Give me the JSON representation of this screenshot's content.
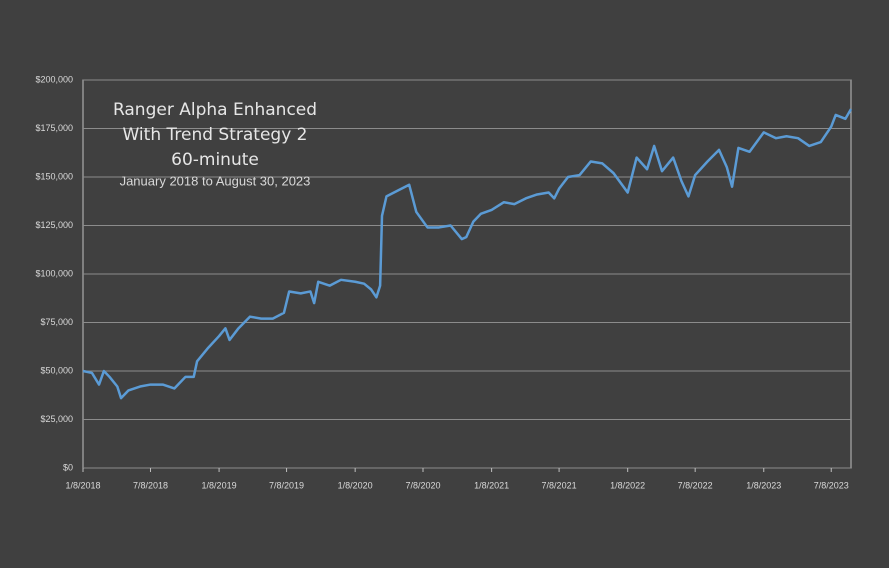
{
  "chart_data": {
    "type": "line",
    "title": [
      "Ranger Alpha Enhanced",
      "With Trend Strategy 2",
      "60-minute"
    ],
    "subtitle": "January 2018 to August 30, 2023",
    "x": [
      "2018-01-08",
      "2018-02-01",
      "2018-02-20",
      "2018-03-05",
      "2018-03-20",
      "2018-04-10",
      "2018-04-20",
      "2018-05-10",
      "2018-06-10",
      "2018-07-08",
      "2018-08-10",
      "2018-09-10",
      "2018-10-10",
      "2018-11-01",
      "2018-11-10",
      "2018-12-10",
      "2019-01-08",
      "2019-01-25",
      "2019-02-05",
      "2019-03-01",
      "2019-04-01",
      "2019-05-01",
      "2019-06-01",
      "2019-07-01",
      "2019-07-15",
      "2019-08-15",
      "2019-09-10",
      "2019-09-20",
      "2019-10-01",
      "2019-11-01",
      "2019-12-01",
      "2020-01-08",
      "2020-02-01",
      "2020-02-20",
      "2020-03-05",
      "2020-03-15",
      "2020-03-20",
      "2020-04-01",
      "2020-05-01",
      "2020-06-01",
      "2020-06-20",
      "2020-07-20",
      "2020-08-20",
      "2020-09-20",
      "2020-10-20",
      "2020-11-01",
      "2020-11-20",
      "2020-12-10",
      "2021-01-08",
      "2021-02-10",
      "2021-03-10",
      "2021-04-10",
      "2021-05-10",
      "2021-06-10",
      "2021-06-25",
      "2021-07-08",
      "2021-08-01",
      "2021-09-01",
      "2021-10-01",
      "2021-11-01",
      "2021-12-01",
      "2022-01-08",
      "2022-02-01",
      "2022-03-01",
      "2022-03-20",
      "2022-04-10",
      "2022-05-10",
      "2022-06-01",
      "2022-06-20",
      "2022-07-08",
      "2022-08-10",
      "2022-09-10",
      "2022-10-01",
      "2022-10-15",
      "2022-11-01",
      "2022-12-01",
      "2023-01-08",
      "2023-02-10",
      "2023-03-10",
      "2023-04-10",
      "2023-05-10",
      "2023-06-10",
      "2023-07-08",
      "2023-07-20",
      "2023-08-15",
      "2023-08-30"
    ],
    "series": [
      {
        "color": "#5b9bd5",
        "values": [
          50000,
          49000,
          43000,
          50000,
          47000,
          42000,
          36000,
          40000,
          42000,
          43000,
          43000,
          41000,
          47000,
          47000,
          55000,
          62000,
          68000,
          72000,
          66000,
          72000,
          78000,
          77000,
          77000,
          80000,
          91000,
          90000,
          91000,
          85000,
          96000,
          94000,
          97000,
          96000,
          95000,
          92000,
          88000,
          94000,
          130000,
          140000,
          143000,
          146000,
          132000,
          124000,
          124000,
          125000,
          118000,
          119000,
          127000,
          131000,
          133000,
          137000,
          136000,
          139000,
          141000,
          142000,
          139000,
          144000,
          150000,
          151000,
          158000,
          157000,
          152000,
          142000,
          160000,
          154000,
          166000,
          153000,
          160000,
          148000,
          140000,
          151000,
          158000,
          164000,
          155000,
          145000,
          165000,
          163000,
          173000,
          170000,
          171000,
          170000,
          166000,
          168000,
          176000,
          182000,
          180000,
          185000
        ]
      }
    ],
    "xlim": [
      "2018-01-08",
      "2023-08-30"
    ],
    "xticks": [
      {
        "value": "2018-01-08",
        "label": "1/8/2018"
      },
      {
        "value": "2018-07-08",
        "label": "7/8/2018"
      },
      {
        "value": "2019-01-08",
        "label": "1/8/2019"
      },
      {
        "value": "2019-07-08",
        "label": "7/8/2019"
      },
      {
        "value": "2020-01-08",
        "label": "1/8/2020"
      },
      {
        "value": "2020-07-08",
        "label": "7/8/2020"
      },
      {
        "value": "2021-01-08",
        "label": "1/8/2021"
      },
      {
        "value": "2021-07-08",
        "label": "7/8/2021"
      },
      {
        "value": "2022-01-08",
        "label": "1/8/2022"
      },
      {
        "value": "2022-07-08",
        "label": "7/8/2022"
      },
      {
        "value": "2023-01-08",
        "label": "1/8/2023"
      },
      {
        "value": "2023-07-08",
        "label": "7/8/2023"
      }
    ],
    "ylim": [
      0,
      200000
    ],
    "yticks": [
      {
        "value": 0,
        "label": "$0"
      },
      {
        "value": 25000,
        "label": "$25,000"
      },
      {
        "value": 50000,
        "label": "$50,000"
      },
      {
        "value": 75000,
        "label": "$75,000"
      },
      {
        "value": 100000,
        "label": "$100,000"
      },
      {
        "value": 125000,
        "label": "$125,000"
      },
      {
        "value": 150000,
        "label": "$150,000"
      },
      {
        "value": 175000,
        "label": "$175,000"
      },
      {
        "value": 200000,
        "label": "$200,000"
      }
    ],
    "grid": true
  }
}
